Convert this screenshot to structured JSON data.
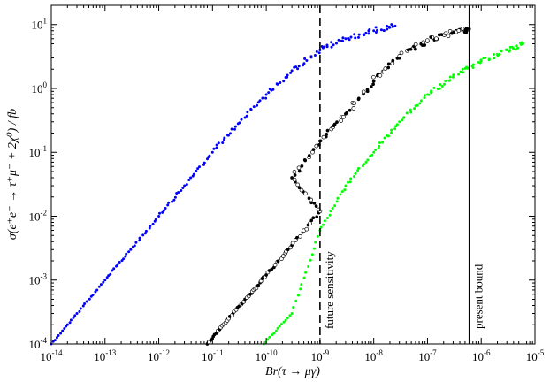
{
  "chart_data": {
    "type": "scatter",
    "xlabel": "Br(τ → μγ)",
    "ylabel": "σ(e⁺e⁻ → τ⁺μ⁻ + 2χ⁰) / fb",
    "x_scale": "log",
    "y_scale": "log",
    "xlim": [
      1e-14,
      1e-05
    ],
    "ylim": [
      0.0001,
      20
    ],
    "x_ticks": [
      {
        "value": 1e-14,
        "base": "10",
        "exp": "-14"
      },
      {
        "value": 1e-13,
        "base": "10",
        "exp": "-13"
      },
      {
        "value": 1e-12,
        "base": "10",
        "exp": "-12"
      },
      {
        "value": 1e-11,
        "base": "10",
        "exp": "-11"
      },
      {
        "value": 1e-10,
        "base": "10",
        "exp": "-10"
      },
      {
        "value": 1e-09,
        "base": "10",
        "exp": "-9"
      },
      {
        "value": 1e-08,
        "base": "10",
        "exp": "-8"
      },
      {
        "value": 1e-07,
        "base": "10",
        "exp": "-7"
      },
      {
        "value": 1e-06,
        "base": "10",
        "exp": "-6"
      },
      {
        "value": 1e-05,
        "base": "10",
        "exp": "-5"
      }
    ],
    "y_ticks": [
      {
        "value": 0.0001,
        "base": "10",
        "exp": "-4"
      },
      {
        "value": 0.001,
        "base": "10",
        "exp": "-3"
      },
      {
        "value": 0.01,
        "base": "10",
        "exp": "-2"
      },
      {
        "value": 0.1,
        "base": "10",
        "exp": "-1"
      },
      {
        "value": 1,
        "base": "10",
        "exp": "0"
      },
      {
        "value": 10,
        "base": "10",
        "exp": "1"
      }
    ],
    "series": [
      {
        "color": "#0000ff",
        "marker": "filled-circle",
        "points": [
          [
            1e-14,
            0.0001
          ],
          [
            3e-14,
            0.0003
          ],
          [
            1e-13,
            0.001
          ],
          [
            3e-13,
            0.003
          ],
          [
            1e-12,
            0.01
          ],
          [
            3e-12,
            0.03
          ],
          [
            1e-11,
            0.1
          ],
          [
            3e-11,
            0.28
          ],
          [
            1e-10,
            0.8
          ],
          [
            3e-10,
            1.9
          ],
          [
            1e-09,
            4.0
          ],
          [
            3e-09,
            6.0
          ],
          [
            1e-08,
            8.0
          ],
          [
            2.5e-08,
            9.5
          ]
        ]
      },
      {
        "color": "#000000",
        "marker": "open-and-filled-circle",
        "points": [
          [
            8e-12,
            0.0001
          ],
          [
            2e-11,
            0.00025
          ],
          [
            5e-11,
            0.0006
          ],
          [
            1e-10,
            0.0012
          ],
          [
            3e-10,
            0.0035
          ],
          [
            1e-09,
            0.012
          ],
          [
            3e-10,
            0.04
          ],
          [
            1e-09,
            0.15
          ],
          [
            3e-09,
            0.4
          ],
          [
            1e-08,
            1.3
          ],
          [
            3e-08,
            3.2
          ],
          [
            1e-07,
            5.5
          ],
          [
            3e-07,
            7.5
          ],
          [
            6e-07,
            8.5
          ]
        ]
      },
      {
        "color": "#00ff00",
        "marker": "filled-circle",
        "points": [
          [
            9e-11,
            0.0001
          ],
          [
            3e-10,
            0.0003
          ],
          [
            1e-09,
            0.006
          ],
          [
            3e-09,
            0.03
          ],
          [
            1e-08,
            0.1
          ],
          [
            3e-08,
            0.3
          ],
          [
            1e-07,
            0.8
          ],
          [
            3e-07,
            1.5
          ],
          [
            1e-06,
            2.7
          ],
          [
            3e-06,
            4.0
          ],
          [
            6e-06,
            5.0
          ]
        ]
      }
    ],
    "vertical_lines": [
      {
        "x": 1e-09,
        "style": "dashed",
        "label": "future sensitivity"
      },
      {
        "x": 6e-07,
        "style": "solid",
        "label": "present bound"
      }
    ]
  }
}
